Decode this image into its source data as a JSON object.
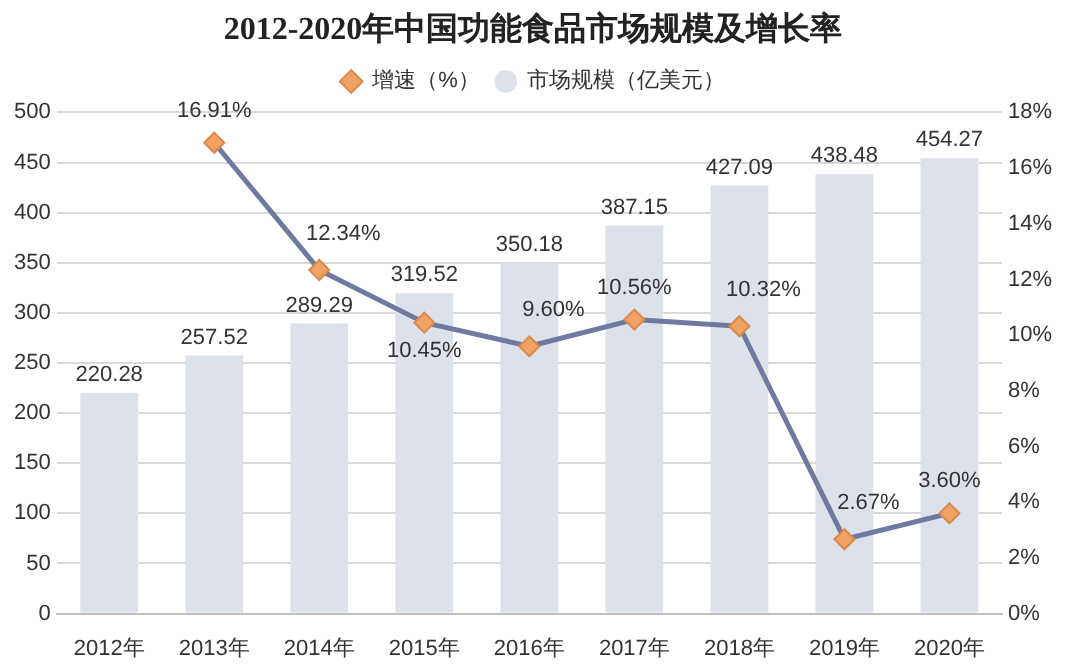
{
  "chart_data": {
    "type": "bar",
    "title": "2012-2020年中国功能食品市场规模及增长率",
    "categories": [
      "2012年",
      "2013年",
      "2014年",
      "2015年",
      "2016年",
      "2017年",
      "2018年",
      "2019年",
      "2020年"
    ],
    "series": [
      {
        "name": "市场规模（亿美元）",
        "color": "#dde1ea",
        "values": [
          220.28,
          257.52,
          289.29,
          319.52,
          350.18,
          387.15,
          427.09,
          438.48,
          454.27
        ],
        "value_labels": [
          "220.28",
          "257.52",
          "289.29",
          "319.52",
          "350.18",
          "387.15",
          "427.09",
          "438.48",
          "454.27"
        ]
      },
      {
        "name": "增速（%）",
        "type": "line",
        "axis": "y2",
        "color": "#7079a0",
        "marker": "diamond",
        "values": [
          null,
          16.91,
          12.34,
          10.45,
          9.6,
          10.56,
          10.32,
          2.67,
          3.6
        ],
        "value_labels": [
          null,
          "16.91%",
          "12.34%",
          "10.45%",
          "9.60%",
          "10.56%",
          "10.32%",
          "2.67%",
          "3.60%"
        ]
      }
    ],
    "ylim": [
      0,
      500
    ],
    "yticks": [
      0,
      50,
      100,
      150,
      200,
      250,
      300,
      350,
      400,
      450,
      500
    ],
    "y2lim": [
      0,
      18
    ],
    "y2ticks": [
      {
        "value": 0,
        "label": "0%"
      },
      {
        "value": 2,
        "label": "2%"
      },
      {
        "value": 4,
        "label": "4%"
      },
      {
        "value": 6,
        "label": "6%"
      },
      {
        "value": 8,
        "label": "8%"
      },
      {
        "value": 10,
        "label": "10%"
      },
      {
        "value": 12,
        "label": "12%"
      },
      {
        "value": 14,
        "label": "14%"
      },
      {
        "value": 16,
        "label": "16%"
      },
      {
        "value": 18,
        "label": "18%"
      }
    ],
    "grid": "y",
    "legend": "top"
  }
}
